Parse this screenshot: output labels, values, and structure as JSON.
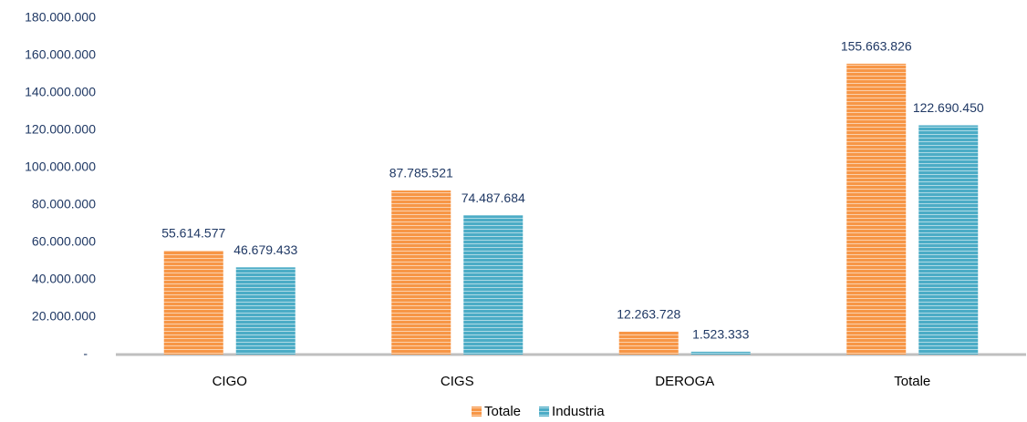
{
  "chart_data": {
    "type": "bar",
    "categories": [
      "CIGO",
      "CIGS",
      "DEROGA",
      "Totale"
    ],
    "series": [
      {
        "name": "Totale",
        "color": "#f79646",
        "values": [
          55614577,
          87785521,
          12263728,
          155663826
        ],
        "value_labels": [
          "55.614.577",
          "87.785.521",
          "12.263.728",
          "155.663.826"
        ]
      },
      {
        "name": "Industria",
        "color": "#4bacc6",
        "values": [
          46679433,
          74487684,
          1523333,
          122690450
        ],
        "value_labels": [
          "46.679.433",
          "74.487.684",
          "1.523.333",
          "122.690.450"
        ]
      }
    ],
    "ylim": [
      0,
      180000000
    ],
    "yticks": [
      {
        "value": 0,
        "label": "-"
      },
      {
        "value": 20000000,
        "label": "20.000.000"
      },
      {
        "value": 40000000,
        "label": "40.000.000"
      },
      {
        "value": 60000000,
        "label": "60.000.000"
      },
      {
        "value": 80000000,
        "label": "80.000.000"
      },
      {
        "value": 100000000,
        "label": "100.000.000"
      },
      {
        "value": 120000000,
        "label": "120.000.000"
      },
      {
        "value": 140000000,
        "label": "140.000.000"
      },
      {
        "value": 160000000,
        "label": "160.000.000"
      },
      {
        "value": 180000000,
        "label": "180.000.000"
      }
    ],
    "grid": false,
    "legend": "bottom"
  }
}
